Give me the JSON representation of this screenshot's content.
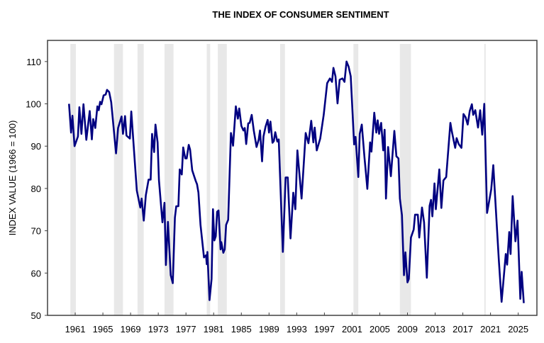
{
  "chart_data": {
    "type": "line",
    "title": "THE INDEX OF CONSUMER SENTIMENT",
    "xlabel": "",
    "ylabel": "INDEX VALUE (1966 = 100)",
    "xlim": [
      1957.0,
      2027.7
    ],
    "ylim": [
      50,
      115
    ],
    "x_ticks": [
      1961,
      1965,
      1969,
      1973,
      1977,
      1981,
      1985,
      1989,
      1993,
      1997,
      2001,
      2005,
      2009,
      2013,
      2017,
      2021,
      2025
    ],
    "y_ticks": [
      50,
      60,
      70,
      80,
      90,
      100,
      110
    ],
    "grid": false,
    "legend": "none",
    "colors": {
      "line": "#000080",
      "recession": "#e8e8e8",
      "axis": "#404040"
    },
    "recession_periods": [
      [
        1960.3,
        1961.1
      ],
      [
        1966.6,
        1967.9
      ],
      [
        1970.0,
        1970.9
      ],
      [
        1973.9,
        1975.2
      ],
      [
        1980.0,
        1980.5
      ],
      [
        1981.6,
        1982.9
      ],
      [
        1990.6,
        1991.3
      ],
      [
        2001.2,
        2001.9
      ],
      [
        2007.9,
        2009.5
      ],
      [
        2020.1,
        2020.3
      ]
    ],
    "series": [
      {
        "points": [
          [
            1960.1,
            100
          ],
          [
            1960.4,
            93.2
          ],
          [
            1960.6,
            97.2
          ],
          [
            1960.9,
            90
          ],
          [
            1961.4,
            92.3
          ],
          [
            1961.6,
            99.2
          ],
          [
            1961.9,
            92.9
          ],
          [
            1962.2,
            99.9
          ],
          [
            1962.6,
            91.5
          ],
          [
            1963.1,
            98.3
          ],
          [
            1963.4,
            91.6
          ],
          [
            1963.6,
            96.4
          ],
          [
            1963.9,
            94.3
          ],
          [
            1964.2,
            99.4
          ],
          [
            1964.4,
            98.5
          ],
          [
            1964.6,
            100.5
          ],
          [
            1964.8,
            99.9
          ],
          [
            1965.1,
            102
          ],
          [
            1965.4,
            102.2
          ],
          [
            1965.6,
            103.3
          ],
          [
            1965.9,
            102.8
          ],
          [
            1966.2,
            100.4
          ],
          [
            1966.9,
            88.3
          ],
          [
            1967.2,
            94.3
          ],
          [
            1967.7,
            97
          ],
          [
            1967.9,
            92.9
          ],
          [
            1968.2,
            97.1
          ],
          [
            1968.4,
            92.5
          ],
          [
            1968.9,
            91.8
          ],
          [
            1969.1,
            98.2
          ],
          [
            1969.9,
            79.5
          ],
          [
            1970.4,
            75.5
          ],
          [
            1970.6,
            77.6
          ],
          [
            1970.9,
            72.4
          ],
          [
            1971.2,
            78.4
          ],
          [
            1971.6,
            82.1
          ],
          [
            1971.9,
            82.1
          ],
          [
            1972.1,
            92.9
          ],
          [
            1972.4,
            88.6
          ],
          [
            1972.6,
            95.1
          ],
          [
            1972.9,
            90.9
          ],
          [
            1973.1,
            82
          ],
          [
            1973.6,
            72
          ],
          [
            1973.9,
            76.6
          ],
          [
            1974.1,
            61.9
          ],
          [
            1974.4,
            72.1
          ],
          [
            1974.8,
            59.5
          ],
          [
            1975.1,
            57.6
          ],
          [
            1975.4,
            73.1
          ],
          [
            1975.6,
            75.8
          ],
          [
            1975.9,
            75.8
          ],
          [
            1976.1,
            84.5
          ],
          [
            1976.4,
            83.3
          ],
          [
            1976.6,
            89.7
          ],
          [
            1976.9,
            87.1
          ],
          [
            1977.1,
            87.1
          ],
          [
            1977.4,
            90.3
          ],
          [
            1977.6,
            89.2
          ],
          [
            1977.9,
            84.3
          ],
          [
            1978.4,
            81.8
          ],
          [
            1978.6,
            81
          ],
          [
            1978.8,
            79
          ],
          [
            1979.1,
            71.4
          ],
          [
            1979.6,
            63.7
          ],
          [
            1979.9,
            64.2
          ],
          [
            1980.0,
            62.1
          ],
          [
            1980.1,
            65
          ],
          [
            1980.4,
            53.6
          ],
          [
            1980.7,
            58.6
          ],
          [
            1980.9,
            75.1
          ],
          [
            1981.1,
            67.7
          ],
          [
            1981.3,
            68.7
          ],
          [
            1981.5,
            74.5
          ],
          [
            1981.7,
            74.8
          ],
          [
            1982.0,
            65.6
          ],
          [
            1982.1,
            67.3
          ],
          [
            1982.4,
            64.8
          ],
          [
            1982.6,
            65.6
          ],
          [
            1982.8,
            71.4
          ],
          [
            1983.1,
            72.6
          ],
          [
            1983.5,
            93.1
          ],
          [
            1983.8,
            90.1
          ],
          [
            1984.2,
            99.4
          ],
          [
            1984.5,
            96.5
          ],
          [
            1984.7,
            98.9
          ],
          [
            1985.0,
            94.8
          ],
          [
            1985.3,
            93.7
          ],
          [
            1985.5,
            94.3
          ],
          [
            1985.7,
            90.5
          ],
          [
            1986.0,
            95.4
          ],
          [
            1986.2,
            95.5
          ],
          [
            1986.5,
            97.4
          ],
          [
            1986.8,
            93.7
          ],
          [
            1987.2,
            89.8
          ],
          [
            1987.5,
            91.5
          ],
          [
            1987.7,
            93.7
          ],
          [
            1988.0,
            86.4
          ],
          [
            1988.2,
            92.3
          ],
          [
            1988.5,
            94.6
          ],
          [
            1988.8,
            96.2
          ],
          [
            1989.0,
            93.2
          ],
          [
            1989.2,
            95.8
          ],
          [
            1989.5,
            90.8
          ],
          [
            1989.7,
            91.2
          ],
          [
            1989.9,
            93.3
          ],
          [
            1990.2,
            91.1
          ],
          [
            1990.4,
            91.6
          ],
          [
            1991.0,
            65
          ],
          [
            1991.4,
            82.6
          ],
          [
            1991.7,
            82.6
          ],
          [
            1992.1,
            68.2
          ],
          [
            1992.5,
            79
          ],
          [
            1992.8,
            75.1
          ],
          [
            1993.1,
            89
          ],
          [
            1993.7,
            77.6
          ],
          [
            1994.3,
            93.1
          ],
          [
            1994.7,
            90.7
          ],
          [
            1995.1,
            96
          ],
          [
            1995.4,
            90.9
          ],
          [
            1995.6,
            94.4
          ],
          [
            1995.9,
            89
          ],
          [
            1996.4,
            91.8
          ],
          [
            1996.9,
            97.4
          ],
          [
            1997.4,
            104.9
          ],
          [
            1997.8,
            106
          ],
          [
            1998.1,
            105.2
          ],
          [
            1998.3,
            108.5
          ],
          [
            1998.6,
            106.5
          ],
          [
            1998.9,
            100.1
          ],
          [
            1999.2,
            105.7
          ],
          [
            1999.6,
            106
          ],
          [
            1999.9,
            105.2
          ],
          [
            2000.2,
            110
          ],
          [
            2000.5,
            108.8
          ],
          [
            2000.8,
            106.5
          ],
          [
            2001.3,
            90.4
          ],
          [
            2001.5,
            92.2
          ],
          [
            2001.9,
            82.7
          ],
          [
            2002.1,
            92.9
          ],
          [
            2002.4,
            95.1
          ],
          [
            2002.8,
            87.1
          ],
          [
            2003.0,
            83.7
          ],
          [
            2003.2,
            79.9
          ],
          [
            2003.6,
            90.9
          ],
          [
            2003.8,
            88.7
          ],
          [
            2004.2,
            97.9
          ],
          [
            2004.5,
            93.2
          ],
          [
            2004.7,
            96.1
          ],
          [
            2004.9,
            92.9
          ],
          [
            2005.2,
            95.5
          ],
          [
            2005.5,
            89
          ],
          [
            2005.7,
            93.9
          ],
          [
            2005.9,
            77.6
          ],
          [
            2006.2,
            89.8
          ],
          [
            2006.6,
            82.9
          ],
          [
            2007.1,
            93.6
          ],
          [
            2007.4,
            87.6
          ],
          [
            2007.7,
            87.1
          ],
          [
            2007.9,
            77.6
          ],
          [
            2008.2,
            73.7
          ],
          [
            2008.5,
            59.5
          ],
          [
            2008.7,
            64.9
          ],
          [
            2009.0,
            57.8
          ],
          [
            2009.2,
            58.6
          ],
          [
            2009.5,
            68.4
          ],
          [
            2009.9,
            70.3
          ],
          [
            2010.1,
            73.8
          ],
          [
            2010.5,
            73.8
          ],
          [
            2010.7,
            68.4
          ],
          [
            2011.1,
            75.5
          ],
          [
            2011.4,
            72
          ],
          [
            2011.8,
            58.9
          ],
          [
            2012.2,
            75.9
          ],
          [
            2012.4,
            77.3
          ],
          [
            2012.6,
            73.4
          ],
          [
            2012.9,
            81.2
          ],
          [
            2013.1,
            75.1
          ],
          [
            2013.6,
            84.5
          ],
          [
            2013.9,
            75.4
          ],
          [
            2014.2,
            81.9
          ],
          [
            2014.6,
            82.7
          ],
          [
            2015.2,
            95.5
          ],
          [
            2015.4,
            93.5
          ],
          [
            2015.9,
            89.6
          ],
          [
            2016.1,
            91.9
          ],
          [
            2016.4,
            90.5
          ],
          [
            2016.8,
            89.6
          ],
          [
            2017.1,
            97.6
          ],
          [
            2017.4,
            96.8
          ],
          [
            2017.7,
            95.1
          ],
          [
            2018.0,
            98.3
          ],
          [
            2018.3,
            99.9
          ],
          [
            2018.5,
            97.4
          ],
          [
            2018.8,
            98.5
          ],
          [
            2019.2,
            94.4
          ],
          [
            2019.5,
            98.5
          ],
          [
            2019.8,
            92.7
          ],
          [
            2020.1,
            100
          ],
          [
            2020.5,
            74.2
          ],
          [
            2020.8,
            77
          ],
          [
            2021.1,
            79.8
          ],
          [
            2021.4,
            85.5
          ],
          [
            2021.9,
            71.4
          ],
          [
            2022.2,
            63.1
          ],
          [
            2022.6,
            53.2
          ],
          [
            2022.9,
            58.9
          ],
          [
            2023.2,
            64.5
          ],
          [
            2023.4,
            62
          ],
          [
            2023.7,
            69.7
          ],
          [
            2023.9,
            64.5
          ],
          [
            2024.2,
            78.2
          ],
          [
            2024.6,
            67.5
          ],
          [
            2024.9,
            72.4
          ],
          [
            2025.3,
            53.9
          ],
          [
            2025.5,
            60.3
          ],
          [
            2025.8,
            52.9
          ]
        ]
      }
    ]
  }
}
